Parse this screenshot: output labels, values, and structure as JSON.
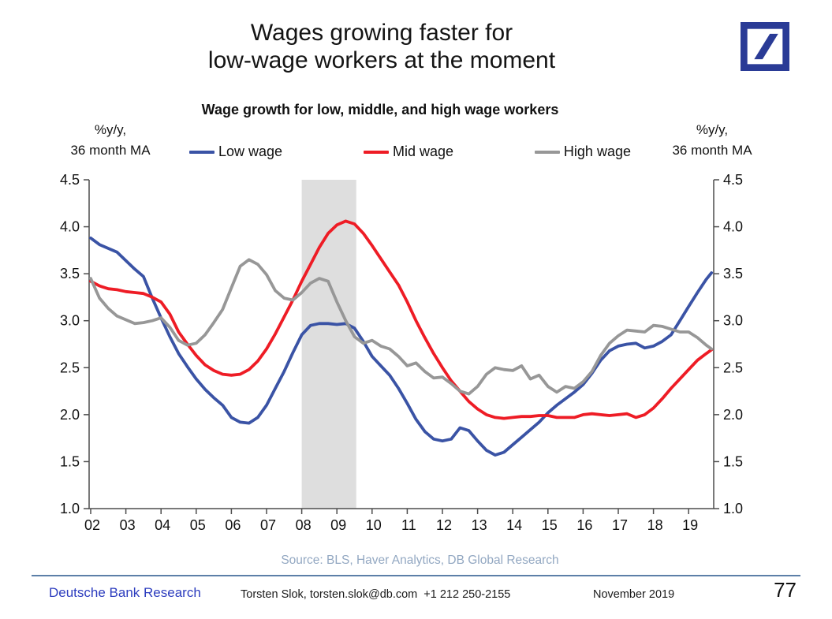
{
  "header": {
    "title_lines": [
      "Wages growing faster for",
      "low-wage workers at the moment"
    ],
    "brand_color": "#2A3B96"
  },
  "chart": {
    "title": "Wage growth for low, middle, and high wage workers",
    "left_axis_unit": [
      "%y/y,",
      "36 month MA"
    ],
    "right_axis_unit": [
      "%y/y,",
      "36 month MA"
    ],
    "legend": [
      {
        "label": "Low wage",
        "color": "#3A53A5"
      },
      {
        "label": "Mid wage",
        "color": "#EE1C25"
      },
      {
        "label": "High wage",
        "color": "#979797"
      }
    ]
  },
  "chart_data": {
    "type": "line",
    "title": "Wage growth for low, middle, and high wage workers",
    "xlabel": "",
    "ylabel": "%y/y, 36 month MA",
    "ylim": [
      1.0,
      4.5
    ],
    "xlim": [
      2001.95,
      2019.7
    ],
    "grid": false,
    "legend_position": "top",
    "y_tick_labels": [
      "1.0",
      "1.5",
      "2.0",
      "2.5",
      "3.0",
      "3.5",
      "4.0",
      "4.5"
    ],
    "y_ticks": [
      1.0,
      1.5,
      2.0,
      2.5,
      3.0,
      3.5,
      4.0,
      4.5
    ],
    "x_tick_years": [
      2002,
      2003,
      2004,
      2005,
      2006,
      2007,
      2008,
      2009,
      2010,
      2011,
      2012,
      2013,
      2014,
      2015,
      2016,
      2017,
      2018,
      2019
    ],
    "x_tick_labels": [
      "02",
      "03",
      "04",
      "05",
      "06",
      "07",
      "08",
      "09",
      "10",
      "11",
      "12",
      "13",
      "14",
      "15",
      "16",
      "17",
      "18",
      "19"
    ],
    "recession_band": {
      "x0": 2008.0,
      "x1": 2009.55,
      "color": "#DEDEDE"
    },
    "x": [
      2002,
      2002.25,
      2002.5,
      2002.75,
      2003,
      2003.25,
      2003.5,
      2003.75,
      2004,
      2004.25,
      2004.5,
      2004.75,
      2005,
      2005.25,
      2005.5,
      2005.75,
      2006,
      2006.25,
      2006.5,
      2006.75,
      2007,
      2007.25,
      2007.5,
      2007.75,
      2008,
      2008.25,
      2008.5,
      2008.75,
      2009,
      2009.25,
      2009.5,
      2009.75,
      2010,
      2010.25,
      2010.5,
      2010.75,
      2011,
      2011.25,
      2011.5,
      2011.75,
      2012,
      2012.25,
      2012.5,
      2012.75,
      2013,
      2013.25,
      2013.5,
      2013.75,
      2014,
      2014.25,
      2014.5,
      2014.75,
      2015,
      2015.25,
      2015.5,
      2015.75,
      2016,
      2016.25,
      2016.5,
      2016.75,
      2017,
      2017.25,
      2017.5,
      2017.75,
      2018,
      2018.25,
      2018.5,
      2018.75,
      2019,
      2019.25,
      2019.5,
      2019.65
    ],
    "series": [
      {
        "name": "Low wage",
        "color": "#3A53A5",
        "values": [
          3.88,
          3.81,
          3.77,
          3.73,
          3.64,
          3.55,
          3.47,
          3.24,
          3.03,
          2.83,
          2.65,
          2.51,
          2.38,
          2.27,
          2.18,
          2.1,
          1.97,
          1.92,
          1.91,
          1.97,
          2.1,
          2.28,
          2.46,
          2.66,
          2.85,
          2.95,
          2.97,
          2.97,
          2.96,
          2.97,
          2.92,
          2.78,
          2.62,
          2.52,
          2.42,
          2.28,
          2.12,
          1.95,
          1.82,
          1.74,
          1.72,
          1.74,
          1.86,
          1.83,
          1.72,
          1.62,
          1.57,
          1.6,
          1.68,
          1.76,
          1.84,
          1.92,
          2.02,
          2.1,
          2.17,
          2.24,
          2.32,
          2.44,
          2.58,
          2.68,
          2.73,
          2.75,
          2.76,
          2.71,
          2.73,
          2.78,
          2.85,
          3.0,
          3.15,
          3.3,
          3.44,
          3.51
        ]
      },
      {
        "name": "Mid wage",
        "color": "#EE1C25",
        "values": [
          3.42,
          3.37,
          3.34,
          3.33,
          3.31,
          3.3,
          3.29,
          3.25,
          3.2,
          3.07,
          2.88,
          2.75,
          2.63,
          2.53,
          2.47,
          2.43,
          2.42,
          2.43,
          2.48,
          2.57,
          2.7,
          2.86,
          3.04,
          3.22,
          3.42,
          3.6,
          3.78,
          3.93,
          4.02,
          4.06,
          4.03,
          3.93,
          3.8,
          3.66,
          3.52,
          3.38,
          3.2,
          3.0,
          2.82,
          2.65,
          2.5,
          2.36,
          2.25,
          2.14,
          2.06,
          2.0,
          1.97,
          1.96,
          1.97,
          1.98,
          1.98,
          1.99,
          1.99,
          1.97,
          1.97,
          1.97,
          2.0,
          2.01,
          2.0,
          1.99,
          2.0,
          2.01,
          1.97,
          2.0,
          2.07,
          2.17,
          2.28,
          2.38,
          2.48,
          2.58,
          2.65,
          2.69
        ]
      },
      {
        "name": "High wage",
        "color": "#979797",
        "values": [
          3.45,
          3.24,
          3.13,
          3.05,
          3.01,
          2.97,
          2.98,
          3.0,
          3.03,
          2.93,
          2.79,
          2.74,
          2.76,
          2.85,
          2.98,
          3.12,
          3.35,
          3.58,
          3.65,
          3.6,
          3.49,
          3.32,
          3.24,
          3.22,
          3.3,
          3.4,
          3.45,
          3.42,
          3.2,
          3.0,
          2.83,
          2.76,
          2.79,
          2.73,
          2.7,
          2.62,
          2.52,
          2.55,
          2.46,
          2.39,
          2.4,
          2.33,
          2.25,
          2.22,
          2.3,
          2.43,
          2.5,
          2.48,
          2.47,
          2.52,
          2.38,
          2.42,
          2.3,
          2.24,
          2.3,
          2.28,
          2.35,
          2.46,
          2.63,
          2.76,
          2.84,
          2.9,
          2.89,
          2.88,
          2.95,
          2.94,
          2.91,
          2.88,
          2.88,
          2.82,
          2.74,
          2.7
        ]
      }
    ]
  },
  "source_note": "Source: BLS, Haver Analytics, DB Global Research",
  "footer": {
    "brand": "Deutsche Bank Research",
    "contact": "Torsten Slok, torsten.slok@db.com  +1 212 250-2155",
    "date": "November 2019",
    "page_number": "77"
  }
}
